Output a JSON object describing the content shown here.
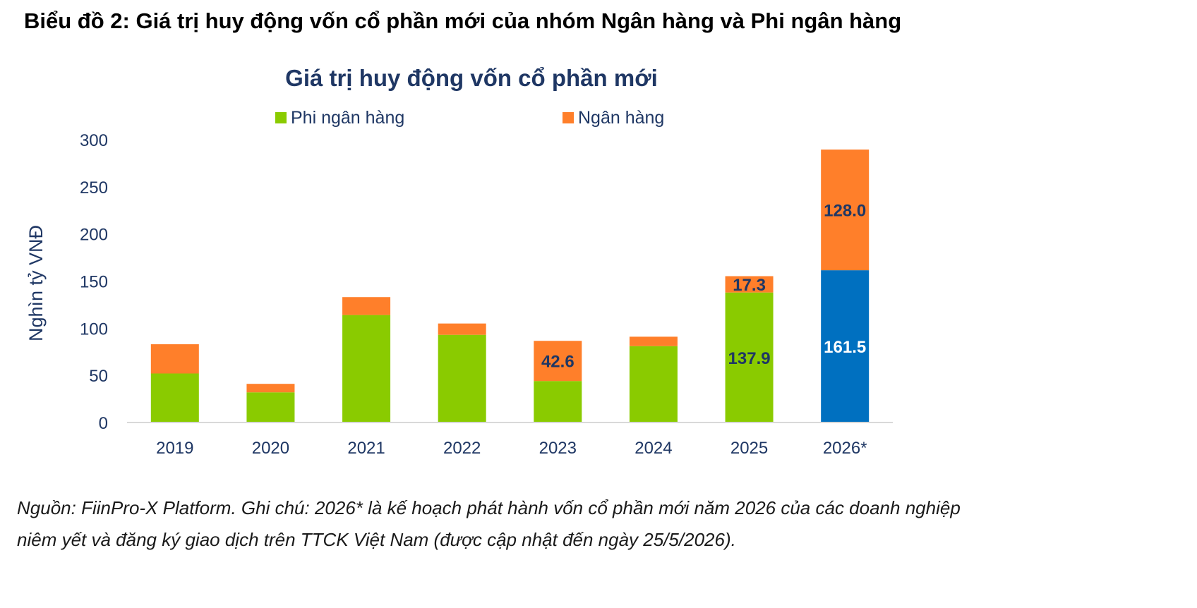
{
  "heading": "Biểu đồ 2: Giá trị huy động vốn cổ phần mới của nhóm Ngân hàng và Phi ngân hàng",
  "note": {
    "line1": "Nguồn: FiinPro-X Platform. Ghi chú: 2026* là kế hoạch phát hành vốn cổ phần mới năm 2026 của các doanh nghiệp",
    "line2": "niêm yết và đăng ký giao dịch trên TTCK Việt Nam (được cập nhật đến ngày 25/5/2026)."
  },
  "colors": {
    "non_bank": "#8ACB00",
    "bank": "#FF7F2A",
    "highlight": "#0070C0",
    "axis_text": "#1F3764",
    "title": "#1F3764"
  },
  "chart_data": {
    "type": "bar",
    "stacked": true,
    "title": "Giá trị huy động vốn cổ phần mới",
    "ylabel": "Nghìn tỷ VNĐ",
    "xlabel": "",
    "ylim": [
      0,
      300
    ],
    "yticks": [
      0,
      50,
      100,
      150,
      200,
      250,
      300
    ],
    "grid": false,
    "legend_position": "top",
    "categories": [
      "2019",
      "2020",
      "2021",
      "2022",
      "2023",
      "2024",
      "2025",
      "2026*"
    ],
    "series": [
      {
        "name": "Phi ngân hàng",
        "color": "#8ACB00",
        "values": [
          52,
          32,
          114,
          93,
          44,
          81,
          137.9,
          161.5
        ],
        "labels": [
          "",
          "",
          "",
          "",
          "",
          "",
          "137.9",
          "161.5"
        ]
      },
      {
        "name": "Ngân hàng",
        "color": "#FF7F2A",
        "values": [
          31,
          9,
          19,
          12,
          42.6,
          10,
          17.3,
          128.0
        ],
        "labels": [
          "",
          "",
          "",
          "",
          "42.6",
          "",
          "17.3",
          "128.0"
        ]
      }
    ],
    "highlight": {
      "category": "2026*",
      "series": "Phi ngân hàng",
      "color": "#0070C0"
    }
  }
}
